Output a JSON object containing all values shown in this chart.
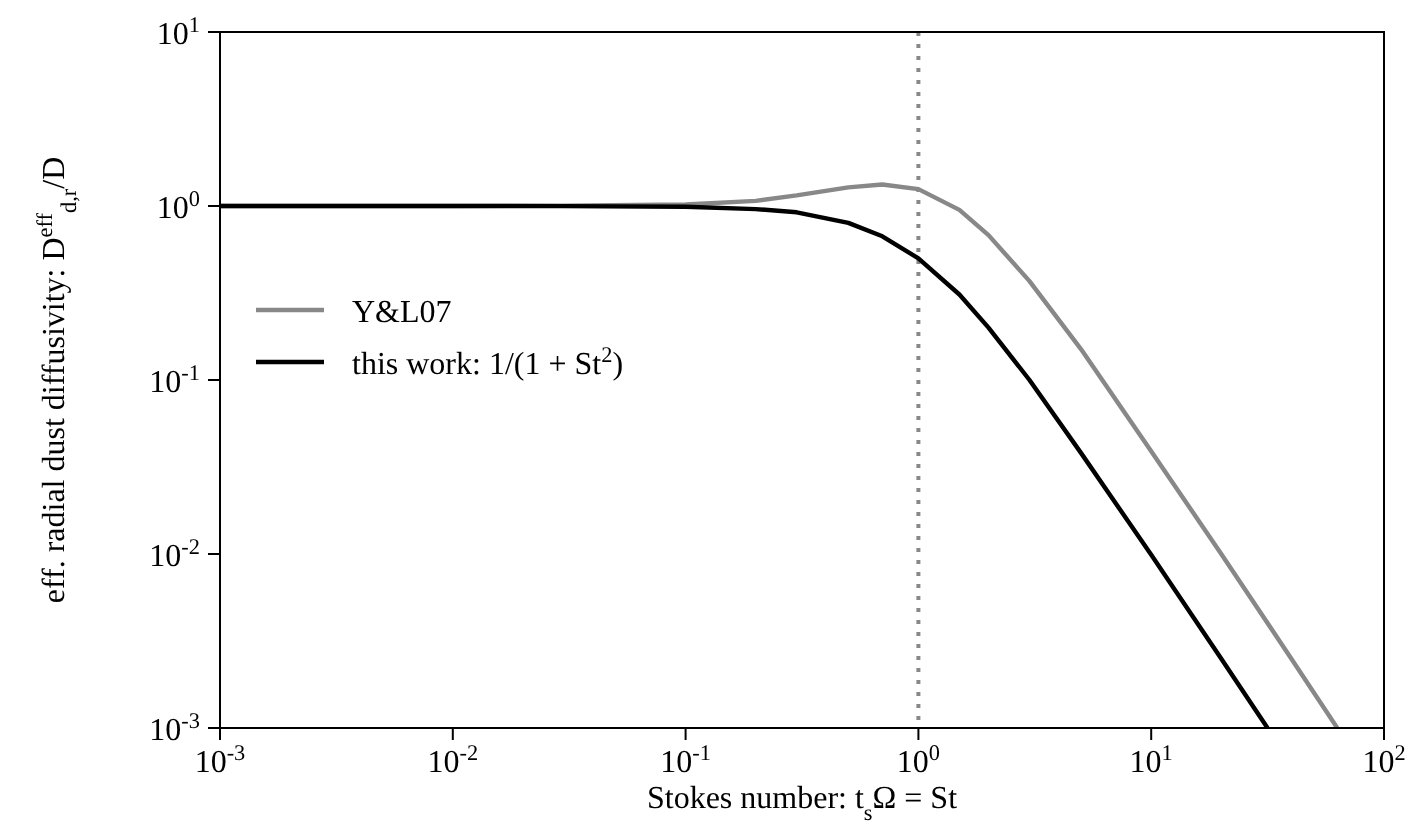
{
  "chart_data": {
    "type": "line",
    "xlabel": "Stokes number: t$_{s}$Ω = St",
    "ylabel": "eff. radial dust diffusivity: D$^{eff}$$_{d,r}$/D",
    "log": "xy",
    "grid": false,
    "legend": "center left",
    "line_style": "solid",
    "xlim": [
      0.001,
      100
    ],
    "ylim": [
      0.001,
      10
    ],
    "xticks": [
      {
        "value": 0.001,
        "label": "10$^{-3}$"
      },
      {
        "value": 0.01,
        "label": "10$^{-2}$"
      },
      {
        "value": 0.1,
        "label": "10$^{-1}$"
      },
      {
        "value": 1,
        "label": "10$^{0}$"
      },
      {
        "value": 10,
        "label": "10$^{1}$"
      },
      {
        "value": 100,
        "label": "10$^{2}$"
      }
    ],
    "yticks": [
      {
        "value": 0.001,
        "label": "10$^{-3}$"
      },
      {
        "value": 0.01,
        "label": "10$^{-2}$"
      },
      {
        "value": 0.1,
        "label": "10$^{-1}$"
      },
      {
        "value": 1,
        "label": "10$^{0}$"
      },
      {
        "value": 10,
        "label": "10$^{1}$"
      }
    ],
    "ref_lines": [
      {
        "axis": "x",
        "value": 1,
        "color": "#888888",
        "line_style": "dotted"
      }
    ],
    "series": [
      {
        "name": "Y&L07",
        "color": "#888888",
        "x": [
          0.001,
          0.01,
          0.03,
          0.1,
          0.2,
          0.3,
          0.5,
          0.7,
          1,
          1.5,
          2,
          3,
          5,
          10,
          20,
          40,
          63
        ],
        "values": [
          1,
          1,
          1.004,
          1.02,
          1.07,
          1.15,
          1.28,
          1.33,
          1.25,
          0.95,
          0.68,
          0.37,
          0.15,
          0.039,
          0.01,
          0.0025,
          0.001
        ]
      },
      {
        "name": "this work: 1/(1 + St$^{2}$)",
        "color": "#000000",
        "x": [
          0.001,
          0.01,
          0.03,
          0.1,
          0.2,
          0.3,
          0.5,
          0.7,
          1,
          1.5,
          2,
          3,
          5,
          10,
          20,
          31.6
        ],
        "values": [
          1,
          1,
          0.999,
          0.99,
          0.96,
          0.92,
          0.8,
          0.67,
          0.5,
          0.31,
          0.2,
          0.1,
          0.038,
          0.0099,
          0.0025,
          0.001
        ]
      }
    ]
  }
}
